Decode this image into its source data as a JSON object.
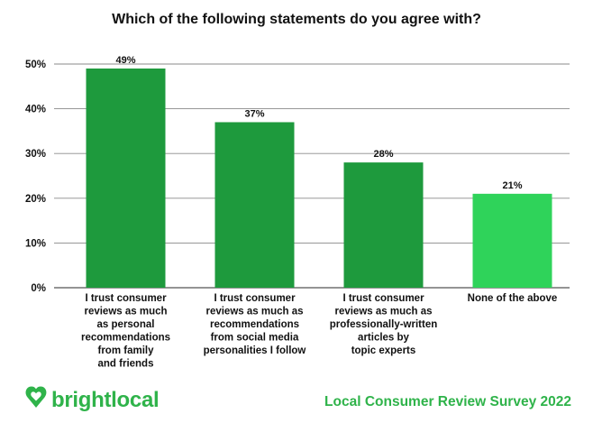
{
  "chart_data": {
    "type": "bar",
    "title": "Which of the following statements do you agree with?",
    "categories": [
      [
        "I trust consumer",
        "reviews as much",
        "as personal",
        "recommendations",
        "from family",
        "and friends"
      ],
      [
        "I trust consumer",
        "reviews as much as",
        "recommendations",
        "from social media",
        "personalities I follow"
      ],
      [
        "I trust consumer",
        "reviews as much as",
        "professionally-written",
        "articles by",
        "topic experts"
      ],
      [
        "None of the above"
      ]
    ],
    "values": [
      49,
      37,
      28,
      21
    ],
    "data_labels": [
      "49%",
      "37%",
      "28%",
      "21%"
    ],
    "yticks": [
      "0%",
      "10%",
      "20%",
      "30%",
      "40%",
      "50%"
    ],
    "ylim": [
      0,
      50
    ],
    "grid": true,
    "colors": [
      "#1e9a3d",
      "#1e9a3d",
      "#1e9a3d",
      "#2fd35a"
    ],
    "xlabel": "",
    "ylabel": ""
  },
  "footer": {
    "brand": "brightlocal",
    "survey": "Local Consumer Review Survey 2022",
    "brand_color": "#2fb34a",
    "logo_icon": "heart-pin-icon"
  }
}
